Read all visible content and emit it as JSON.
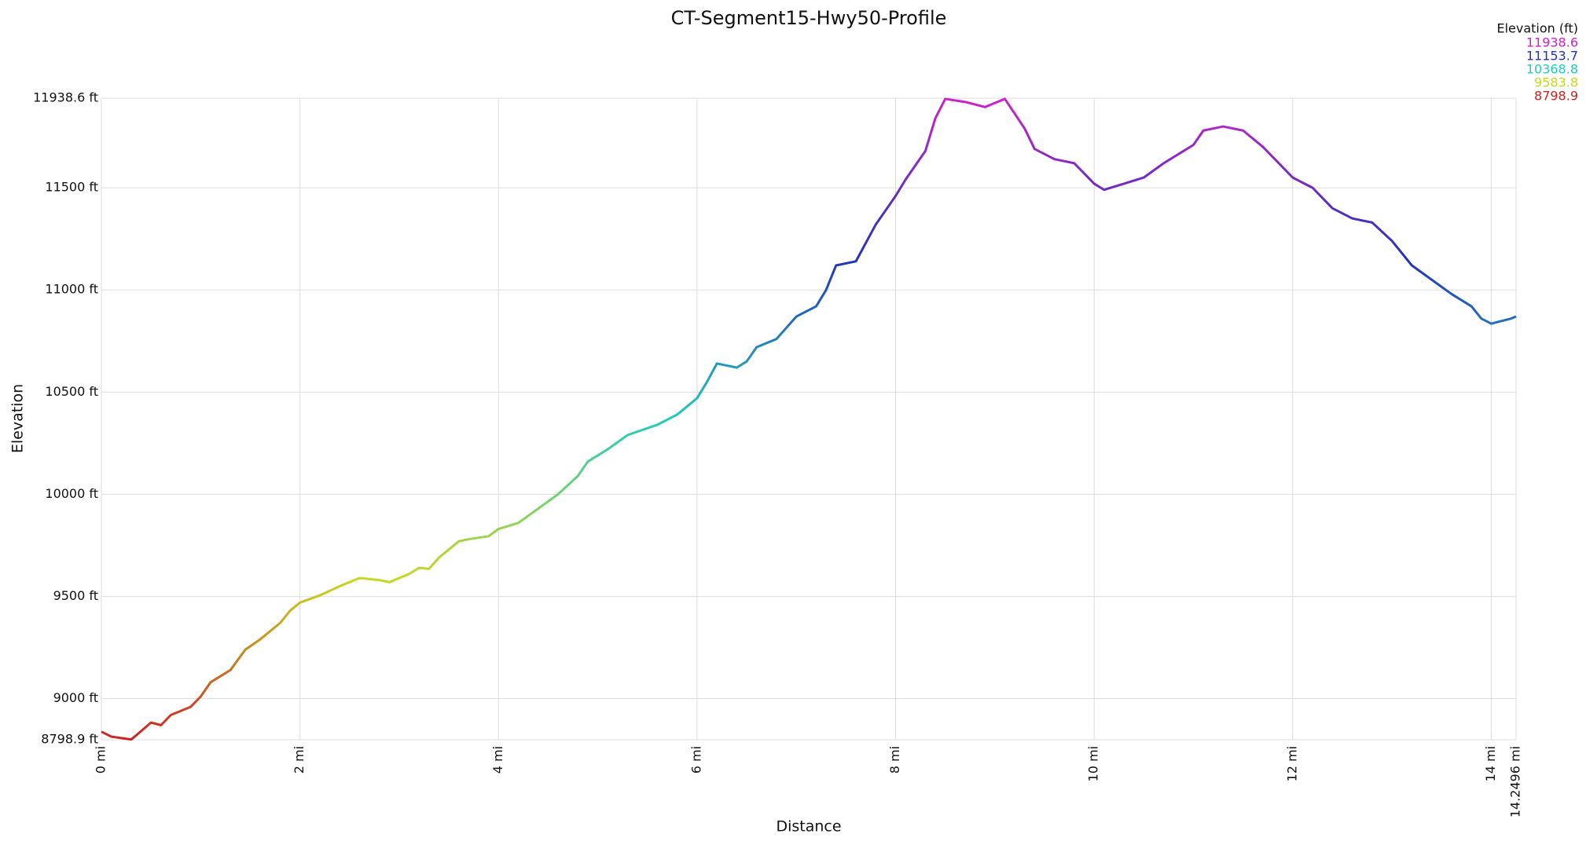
{
  "chart_data": {
    "type": "line",
    "title": "CT-Segment15-Hwy50-Profile",
    "x_label": "Distance",
    "y_label": "Elevation",
    "x": [
      0,
      0.1,
      0.3,
      0.35,
      0.5,
      0.6,
      0.7,
      0.9,
      1.0,
      1.1,
      1.2,
      1.3,
      1.45,
      1.6,
      1.8,
      1.9,
      2.0,
      2.2,
      2.4,
      2.6,
      2.8,
      2.9,
      3.1,
      3.2,
      3.3,
      3.4,
      3.6,
      3.7,
      3.9,
      4.0,
      4.2,
      4.4,
      4.6,
      4.8,
      4.9,
      5.0,
      5.1,
      5.3,
      5.6,
      5.8,
      6.0,
      6.1,
      6.2,
      6.4,
      6.5,
      6.6,
      6.8,
      7.0,
      7.2,
      7.3,
      7.4,
      7.6,
      7.8,
      8.0,
      8.1,
      8.3,
      8.4,
      8.5,
      8.7,
      8.9,
      9.1,
      9.3,
      9.4,
      9.6,
      9.8,
      10.0,
      10.1,
      10.3,
      10.5,
      10.7,
      10.9,
      11.0,
      11.1,
      11.3,
      11.5,
      11.7,
      12.0,
      12.2,
      12.4,
      12.6,
      12.8,
      13.0,
      13.2,
      13.4,
      13.6,
      13.8,
      13.9,
      14.0,
      14.2,
      14.2496
    ],
    "series": [
      {
        "name": "Elevation",
        "values": [
          8838,
          8814,
          8800,
          8820,
          8883,
          8870,
          8920,
          8960,
          9010,
          9080,
          9110,
          9140,
          9240,
          9290,
          9370,
          9430,
          9470,
          9505,
          9550,
          9590,
          9580,
          9570,
          9610,
          9640,
          9635,
          9690,
          9770,
          9780,
          9795,
          9830,
          9860,
          9930,
          10000,
          10090,
          10160,
          10190,
          10220,
          10290,
          10340,
          10390,
          10470,
          10550,
          10640,
          10620,
          10650,
          10720,
          10760,
          10870,
          10920,
          11000,
          11120,
          11140,
          11320,
          11460,
          11540,
          11680,
          11840,
          11935,
          11920,
          11895,
          11935,
          11790,
          11690,
          11640,
          11620,
          11520,
          11490,
          11520,
          11550,
          11620,
          11680,
          11710,
          11780,
          11800,
          11780,
          11700,
          11550,
          11500,
          11400,
          11350,
          11330,
          11240,
          11120,
          11050,
          10980,
          10920,
          10860,
          10835,
          10860,
          10870
        ]
      }
    ],
    "xlim": [
      0,
      14.2496
    ],
    "xticks": [
      {
        "value": 0,
        "label": "0 mi"
      },
      {
        "value": 2,
        "label": "2 mi"
      },
      {
        "value": 4,
        "label": "4 mi"
      },
      {
        "value": 6,
        "label": "6 mi"
      },
      {
        "value": 8,
        "label": "8 mi"
      },
      {
        "value": 10,
        "label": "10 mi"
      },
      {
        "value": 12,
        "label": "12 mi"
      },
      {
        "value": 14,
        "label": "14 mi"
      },
      {
        "value": 14.2496,
        "label": "14.2496 mi"
      }
    ],
    "ylim": [
      8798.9,
      11938.6
    ],
    "yticks": [
      {
        "value": 8798.9,
        "label": "8798.9 ft"
      },
      {
        "value": 9000,
        "label": "9000 ft"
      },
      {
        "value": 9500,
        "label": "9500 ft"
      },
      {
        "value": 10000,
        "label": "10000 ft"
      },
      {
        "value": 10500,
        "label": "10500 ft"
      },
      {
        "value": 11000,
        "label": "11000 ft"
      },
      {
        "value": 11500,
        "label": "11500 ft"
      },
      {
        "value": 11938.6,
        "label": "11938.6 ft"
      }
    ],
    "grid": true,
    "color_scale": {
      "title": "Elevation (ft)",
      "stops": [
        {
          "value": 11938.6,
          "color": "#cc22cc"
        },
        {
          "value": 11153.7,
          "color": "#2233bb"
        },
        {
          "value": 10368.8,
          "color": "#22ccbb"
        },
        {
          "value": 9583.8,
          "color": "#c8d820"
        },
        {
          "value": 8798.9,
          "color": "#cc2222"
        }
      ]
    }
  }
}
